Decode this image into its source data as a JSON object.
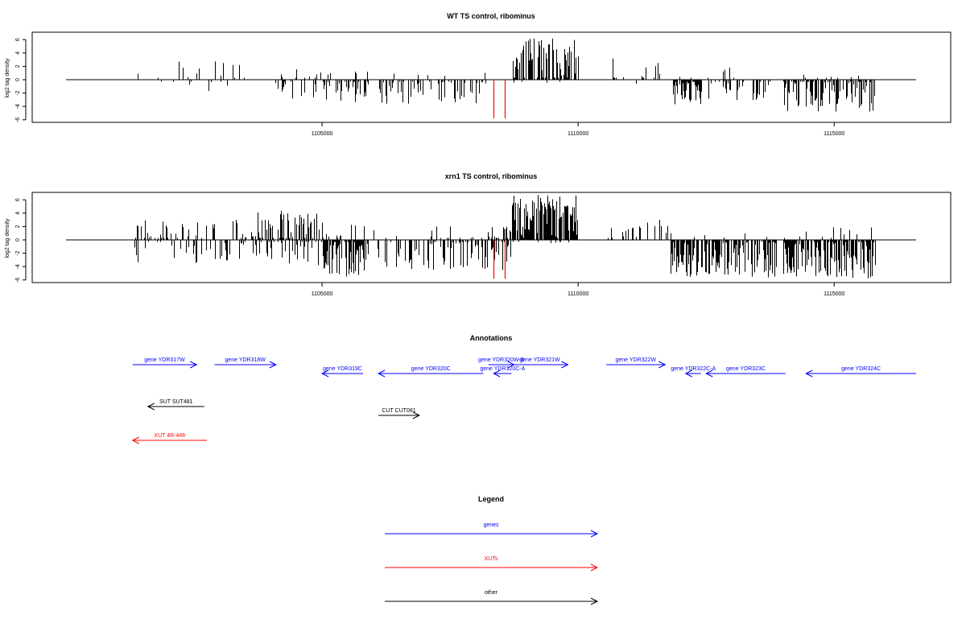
{
  "chart_data": [
    {
      "type": "bar",
      "title": "WT TS control, ribominus",
      "ylabel": "log2 tag density",
      "xlim": [
        1100000,
        1116600
      ],
      "ylim": [
        -6,
        7
      ],
      "yticks": [
        -6,
        -4,
        -2,
        0,
        2,
        4,
        6
      ],
      "xticks": [
        1105000,
        1110000,
        1115000
      ],
      "xtick_labels": [
        "1105000",
        "1110000",
        "1115000"
      ],
      "highlight_color": "#ff0000",
      "bar_color": "#000000",
      "highlights": [
        {
          "x": 1108340,
          "y": -5.8
        },
        {
          "x": 1108560,
          "y": -5.8
        }
      ],
      "regions": [
        {
          "from": 1101300,
          "to": 1103700,
          "yMin": -1.8,
          "yMax": 3.3,
          "n": 24,
          "posFrac": 0.6,
          "seed": 11
        },
        {
          "from": 1104050,
          "to": 1105000,
          "yMin": -3.0,
          "yMax": 3.0,
          "n": 28,
          "posFrac": 0.5,
          "seed": 12
        },
        {
          "from": 1105000,
          "to": 1105900,
          "yMin": -3.6,
          "yMax": 1.5,
          "n": 45,
          "posFrac": 0.08,
          "seed": 13
        },
        {
          "from": 1106100,
          "to": 1108200,
          "yMin": -3.6,
          "yMax": 2.2,
          "n": 60,
          "posFrac": 0.08,
          "seed": 14
        },
        {
          "from": 1108700,
          "to": 1110000,
          "yMin": -0.5,
          "yMax": 6.2,
          "n": 110,
          "posFrac": 0.97,
          "seed": 15
        },
        {
          "from": 1110600,
          "to": 1111600,
          "yMin": -0.8,
          "yMax": 3.3,
          "n": 16,
          "posFrac": 0.9,
          "seed": 16
        },
        {
          "from": 1111800,
          "to": 1112400,
          "yMin": -3.8,
          "yMax": 0.5,
          "n": 60,
          "posFrac": 0.03,
          "seed": 17
        },
        {
          "from": 1112500,
          "to": 1113800,
          "yMin": -3.2,
          "yMax": 2.0,
          "n": 45,
          "posFrac": 0.08,
          "seed": 18
        },
        {
          "from": 1114000,
          "to": 1115800,
          "yMin": -4.8,
          "yMax": 1.0,
          "n": 110,
          "posFrac": 0.04,
          "seed": 19
        }
      ]
    },
    {
      "type": "bar",
      "title": "xrn1 TS control, ribominus",
      "ylabel": "log2 tag density",
      "xlim": [
        1100000,
        1116600
      ],
      "ylim": [
        -6,
        7
      ],
      "yticks": [
        -6,
        -4,
        -2,
        0,
        2,
        4,
        6
      ],
      "xticks": [
        1105000,
        1110000,
        1115000
      ],
      "xtick_labels": [
        "1105000",
        "1110000",
        "1115000"
      ],
      "highlight_color": "#ff0000",
      "bar_color": "#000000",
      "highlights": [
        {
          "x": 1108340,
          "y": -5.8
        },
        {
          "x": 1108560,
          "y": -5.8
        }
      ],
      "regions": [
        {
          "from": 1101300,
          "to": 1103600,
          "yMin": -3.5,
          "yMax": 3.0,
          "n": 90,
          "posFrac": 0.5,
          "seed": 21
        },
        {
          "from": 1103600,
          "to": 1105000,
          "yMin": -4.0,
          "yMax": 4.4,
          "n": 110,
          "posFrac": 0.6,
          "seed": 22
        },
        {
          "from": 1105000,
          "to": 1105900,
          "yMin": -5.5,
          "yMax": 3.0,
          "n": 110,
          "posFrac": 0.12,
          "seed": 23
        },
        {
          "from": 1106000,
          "to": 1108200,
          "yMin": -4.5,
          "yMax": 2.4,
          "n": 100,
          "posFrac": 0.15,
          "seed": 24
        },
        {
          "from": 1108200,
          "to": 1108700,
          "yMin": -5.0,
          "yMax": 2.0,
          "n": 40,
          "posFrac": 0.25,
          "seed": 25
        },
        {
          "from": 1108700,
          "to": 1110000,
          "yMin": -0.5,
          "yMax": 6.8,
          "n": 200,
          "posFrac": 0.98,
          "seed": 26
        },
        {
          "from": 1110500,
          "to": 1111800,
          "yMin": -2.6,
          "yMax": 3.1,
          "n": 22,
          "posFrac": 0.9,
          "seed": 27
        },
        {
          "from": 1111800,
          "to": 1113900,
          "yMin": -5.8,
          "yMax": 1.0,
          "n": 150,
          "posFrac": 0.04,
          "seed": 28
        },
        {
          "from": 1114000,
          "to": 1115800,
          "yMin": -5.8,
          "yMax": 2.0,
          "n": 160,
          "posFrac": 0.05,
          "seed": 29
        }
      ]
    }
  ],
  "annotations": {
    "title": "Annotations",
    "colors": {
      "genes": "#0000ff",
      "XUTs": "#ff0000",
      "other": "#000000"
    },
    "items": [
      {
        "label": "gene YDR317W",
        "category": "genes",
        "from": 1101300,
        "to": 1102550,
        "dir": "right",
        "row": 0
      },
      {
        "label": "gene YDR318W",
        "category": "genes",
        "from": 1102900,
        "to": 1104100,
        "dir": "right",
        "row": 0
      },
      {
        "label": "gene YDR319C",
        "category": "genes",
        "from": 1105000,
        "to": 1105800,
        "dir": "left",
        "row": 1
      },
      {
        "label": "gene YDR320C",
        "category": "genes",
        "from": 1106100,
        "to": 1108150,
        "dir": "left",
        "row": 1
      },
      {
        "label": "gene YDR320W-B",
        "category": "genes",
        "from": 1108250,
        "to": 1108750,
        "dir": "right",
        "row": 0
      },
      {
        "label": "gene YDR320C-A",
        "category": "genes",
        "from": 1108350,
        "to": 1108700,
        "dir": "left",
        "row": 1
      },
      {
        "label": "gene YDR321W",
        "category": "genes",
        "from": 1108700,
        "to": 1109800,
        "dir": "right",
        "row": 0
      },
      {
        "label": "gene YDR322W",
        "category": "genes",
        "from": 1110550,
        "to": 1111700,
        "dir": "right",
        "row": 0
      },
      {
        "label": "gene YDR322C-A",
        "category": "genes",
        "from": 1112100,
        "to": 1112400,
        "dir": "left",
        "row": 1
      },
      {
        "label": "gene YDR323C",
        "category": "genes",
        "from": 1112500,
        "to": 1114050,
        "dir": "left",
        "row": 1
      },
      {
        "label": "gene YDR324C",
        "category": "genes",
        "from": 1114450,
        "to": 1116600,
        "dir": "left",
        "row": 1
      },
      {
        "label": "SUT SUT481",
        "category": "other",
        "from": 1101600,
        "to": 1102700,
        "dir": "left",
        "row": 2
      },
      {
        "label": "CUT CUT081",
        "category": "other",
        "from": 1106100,
        "to": 1106900,
        "dir": "right",
        "row": 3
      },
      {
        "label": "XUT 4R-446",
        "category": "XUTs",
        "from": 1101300,
        "to": 1102750,
        "dir": "left",
        "row": 4
      }
    ]
  },
  "legend": {
    "title": "Legend",
    "items": [
      {
        "label": "genes",
        "category": "genes"
      },
      {
        "label": "XUTs",
        "category": "XUTs"
      },
      {
        "label": "other",
        "category": "other"
      }
    ]
  }
}
